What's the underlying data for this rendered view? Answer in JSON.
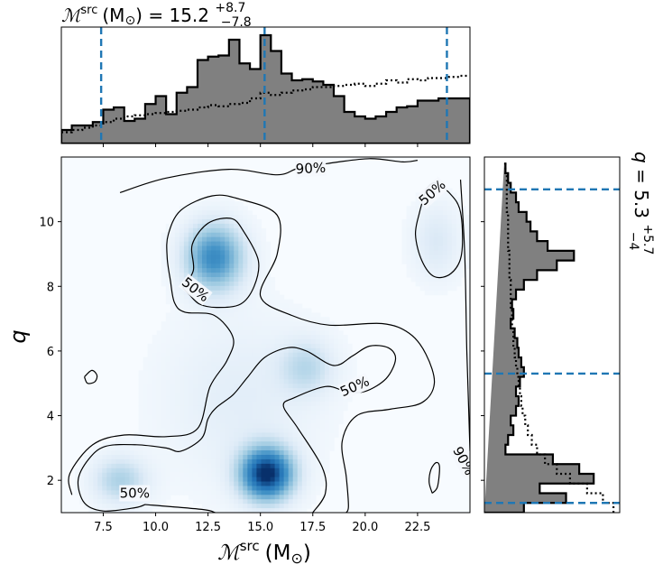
{
  "chart_data": {
    "type": "corner",
    "colors": {
      "hist_fill": "#808080",
      "credible_lines": "#1f77b4",
      "density_light": "#f2f6fc",
      "density_dark": "#08306b",
      "contour": "#000000"
    },
    "mchirp": {
      "label_math": "ℳ",
      "label_sup": "src",
      "label_unit": "(M",
      "label_sun": "⊙",
      "label_close": ")",
      "title_value": "15.2",
      "title_plus": "+8.7",
      "title_minus": "−7.8",
      "range": [
        5.5,
        25.0
      ],
      "ticks": [
        "7.5",
        "10.0",
        "12.5",
        "15.0",
        "17.5",
        "20.0",
        "22.5"
      ],
      "tick_values": [
        7.5,
        10.0,
        12.5,
        15.0,
        17.5,
        20.0,
        22.5
      ],
      "credible_interval": [
        7.4,
        15.2,
        23.9
      ],
      "posterior_hist": {
        "bin_edges": [
          5.5,
          6.0,
          6.5,
          7.0,
          7.5,
          8.0,
          8.5,
          9.0,
          9.5,
          10.0,
          10.5,
          11.0,
          11.5,
          12.0,
          12.5,
          13.0,
          13.5,
          14.0,
          14.5,
          15.0,
          15.5,
          16.0,
          16.5,
          17.0,
          17.5,
          18.0,
          18.5,
          19.0,
          19.5,
          20.0,
          20.5,
          21.0,
          21.5,
          22.0,
          22.5,
          23.0,
          23.5,
          24.0,
          24.5,
          25.0
        ],
        "counts": [
          0.12,
          0.16,
          0.16,
          0.19,
          0.3,
          0.32,
          0.2,
          0.22,
          0.35,
          0.42,
          0.26,
          0.45,
          0.5,
          0.74,
          0.77,
          0.78,
          0.92,
          0.71,
          0.66,
          0.96,
          0.82,
          0.62,
          0.56,
          0.57,
          0.55,
          0.52,
          0.42,
          0.28,
          0.24,
          0.22,
          0.24,
          0.28,
          0.32,
          0.33,
          0.38,
          0.38,
          0.4,
          0.4,
          0.4
        ]
      },
      "prior_hist": {
        "bin_edges": [
          5.5,
          6.0,
          6.5,
          7.0,
          7.5,
          8.0,
          8.5,
          9.0,
          9.5,
          10.0,
          10.5,
          11.0,
          11.5,
          12.0,
          12.5,
          13.0,
          13.5,
          14.0,
          14.5,
          15.0,
          15.5,
          16.0,
          16.5,
          17.0,
          17.5,
          18.0,
          18.5,
          19.0,
          19.5,
          20.0,
          20.5,
          21.0,
          21.5,
          22.0,
          22.5,
          23.0,
          23.5,
          24.0,
          24.5,
          25.0
        ],
        "counts": [
          0.1,
          0.12,
          0.14,
          0.16,
          0.19,
          0.22,
          0.24,
          0.25,
          0.26,
          0.27,
          0.28,
          0.29,
          0.3,
          0.32,
          0.34,
          0.33,
          0.35,
          0.36,
          0.4,
          0.45,
          0.43,
          0.45,
          0.47,
          0.48,
          0.5,
          0.5,
          0.51,
          0.52,
          0.53,
          0.51,
          0.53,
          0.56,
          0.54,
          0.57,
          0.56,
          0.58,
          0.58,
          0.59,
          0.6
        ]
      }
    },
    "q": {
      "label": "q",
      "title_value": "5.3",
      "title_plus": "+5.7",
      "title_minus": "−4",
      "range": [
        1.0,
        12.0
      ],
      "ticks": [
        "2",
        "4",
        "6",
        "8",
        "10"
      ],
      "tick_values": [
        2,
        4,
        6,
        8,
        10
      ],
      "credible_interval": [
        1.3,
        5.3,
        11.0
      ],
      "posterior_hist": {
        "bin_edges": [
          1.0,
          1.3,
          1.6,
          1.9,
          2.2,
          2.5,
          2.8,
          3.1,
          3.4,
          3.7,
          4.0,
          4.3,
          4.6,
          4.9,
          5.2,
          5.5,
          5.8,
          6.1,
          6.4,
          6.7,
          7.0,
          7.3,
          7.6,
          7.9,
          8.2,
          8.5,
          8.8,
          9.1,
          9.4,
          9.7,
          10.0,
          10.3,
          10.6,
          10.9,
          11.2,
          11.5,
          11.8
        ],
        "counts": [
          0.3,
          0.62,
          0.42,
          0.83,
          0.72,
          0.52,
          0.16,
          0.18,
          0.22,
          0.2,
          0.24,
          0.26,
          0.24,
          0.27,
          0.3,
          0.28,
          0.26,
          0.25,
          0.23,
          0.2,
          0.22,
          0.21,
          0.24,
          0.3,
          0.4,
          0.55,
          0.68,
          0.48,
          0.4,
          0.35,
          0.32,
          0.26,
          0.24,
          0.2,
          0.18,
          0.16,
          0.15
        ]
      },
      "prior_hist": {
        "bin_edges": [
          1.0,
          1.3,
          1.6,
          1.9,
          2.2,
          2.5,
          2.8,
          3.1,
          3.4,
          3.7,
          4.0,
          4.3,
          4.6,
          4.9,
          5.2,
          5.5,
          5.8,
          6.1,
          6.4,
          6.7,
          7.0,
          7.3,
          7.6,
          7.9,
          8.2,
          8.5,
          8.8,
          9.1,
          9.4,
          9.7,
          10.0,
          10.3,
          10.6,
          10.9,
          11.2,
          11.5,
          11.8
        ],
        "counts": [
          0.98,
          0.9,
          0.78,
          0.65,
          0.55,
          0.46,
          0.4,
          0.36,
          0.33,
          0.31,
          0.29,
          0.28,
          0.27,
          0.26,
          0.25,
          0.24,
          0.23,
          0.22,
          0.22,
          0.21,
          0.21,
          0.2,
          0.2,
          0.2,
          0.19,
          0.19,
          0.19,
          0.18,
          0.18,
          0.18,
          0.18,
          0.17,
          0.17,
          0.17,
          0.17,
          0.16,
          0.16
        ]
      }
    },
    "joint_density": {
      "blobs": [
        {
          "mchirp": 15.3,
          "q": 2.2,
          "weight": 1.0,
          "sigma_x": 0.85,
          "sigma_y": 0.55
        },
        {
          "mchirp": 12.8,
          "q": 8.9,
          "weight": 0.62,
          "sigma_x": 0.95,
          "sigma_y": 0.7
        },
        {
          "mchirp": 8.3,
          "q": 2.0,
          "weight": 0.28,
          "sigma_x": 0.9,
          "sigma_y": 0.5
        },
        {
          "mchirp": 17.2,
          "q": 5.5,
          "weight": 0.22,
          "sigma_x": 0.9,
          "sigma_y": 0.6
        },
        {
          "mchirp": 23.4,
          "q": 9.4,
          "weight": 0.14,
          "sigma_x": 0.8,
          "sigma_y": 0.8
        },
        {
          "mchirp": 14.0,
          "q": 4.5,
          "weight": 0.1,
          "sigma_x": 2.5,
          "sigma_y": 1.8
        }
      ],
      "contour_labels": [
        {
          "text": "90%",
          "mchirp": 17.4,
          "q": 11.65,
          "rotation": -3
        },
        {
          "text": "50%",
          "mchirp": 11.9,
          "q": 7.9,
          "rotation": 38
        },
        {
          "text": "50%",
          "mchirp": 19.5,
          "q": 4.9,
          "rotation": -24
        },
        {
          "text": "50%",
          "mchirp": 23.2,
          "q": 10.9,
          "rotation": -42
        },
        {
          "text": "50%",
          "mchirp": 9.0,
          "q": 1.6,
          "rotation": 0
        },
        {
          "text": "90%",
          "mchirp": 24.7,
          "q": 2.6,
          "rotation": 62
        }
      ],
      "contours": [
        {
          "level": "90%",
          "points": [
            [
              8.3,
              10.9
            ],
            [
              10.5,
              11.35
            ],
            [
              13.5,
              11.62
            ],
            [
              15.8,
              11.45
            ],
            [
              16.8,
              11.65
            ],
            [
              18.2,
              11.8
            ],
            [
              20.2,
              11.95
            ],
            [
              21.8,
              11.85
            ],
            [
              22.5,
              11.9
            ]
          ]
        },
        {
          "level": "90%",
          "points": [
            [
              24.55,
              11.3
            ],
            [
              24.75,
              9.0
            ],
            [
              24.85,
              6.0
            ],
            [
              24.95,
              4.0
            ],
            [
              25.0,
              2.9
            ]
          ]
        },
        {
          "level": "50%",
          "points": [
            [
              11.3,
              7.95
            ],
            [
              11.8,
              8.5
            ],
            [
              11.75,
              9.3
            ],
            [
              12.5,
              9.95
            ],
            [
              13.6,
              10.1
            ],
            [
              14.2,
              9.7
            ],
            [
              14.9,
              8.8
            ],
            [
              14.7,
              8.0
            ],
            [
              14.05,
              7.45
            ],
            [
              12.9,
              7.35
            ],
            [
              12.1,
              7.45
            ],
            [
              11.6,
              7.75
            ],
            [
              11.3,
              7.95
            ]
          ]
        },
        {
          "level": "50%",
          "points": [
            [
              22.9,
              11.0
            ],
            [
              23.3,
              11.2
            ],
            [
              24.0,
              10.9
            ],
            [
              24.55,
              10.3
            ],
            [
              24.6,
              9.0
            ],
            [
              24.1,
              8.4
            ],
            [
              23.3,
              8.3
            ],
            [
              22.7,
              8.8
            ],
            [
              22.4,
              9.6
            ],
            [
              22.6,
              10.3
            ],
            [
              22.9,
              11.0
            ]
          ]
        },
        {
          "level": "50%",
          "points": [
            [
              6.6,
              5.2
            ],
            [
              6.95,
              5.4
            ],
            [
              7.2,
              5.25
            ],
            [
              7.1,
              5.05
            ],
            [
              6.75,
              5.0
            ],
            [
              6.6,
              5.2
            ]
          ]
        },
        {
          "level": "50%",
          "points": [
            [
              23.2,
              1.6
            ],
            [
              23.45,
              1.8
            ],
            [
              23.55,
              2.4
            ],
            [
              23.4,
              2.55
            ],
            [
              23.15,
              2.35
            ],
            [
              23.05,
              1.95
            ],
            [
              23.2,
              1.6
            ]
          ]
        },
        {
          "level": "50%",
          "points": [
            [
              9.5,
              1.25
            ],
            [
              12.2,
              1.1
            ],
            [
              12.85,
              1.0
            ]
          ]
        },
        {
          "level": "50%",
          "points": [
            [
              17.5,
              1.0
            ],
            [
              18.1,
              1.6
            ],
            [
              17.95,
              2.4
            ],
            [
              16.8,
              3.6
            ],
            [
              16.1,
              4.3
            ],
            [
              16.6,
              4.55
            ],
            [
              18.1,
              4.9
            ],
            [
              19.1,
              4.75
            ],
            [
              20.0,
              4.75
            ],
            [
              21.0,
              5.15
            ],
            [
              21.45,
              5.75
            ],
            [
              21.1,
              6.1
            ],
            [
              20.2,
              6.15
            ],
            [
              19.4,
              5.85
            ],
            [
              18.5,
              5.55
            ],
            [
              17.2,
              6.0
            ],
            [
              16.3,
              6.1
            ],
            [
              15.2,
              5.8
            ],
            [
              14.4,
              5.2
            ],
            [
              13.7,
              4.65
            ],
            [
              12.9,
              4.25
            ],
            [
              12.5,
              3.9
            ],
            [
              12.2,
              3.3
            ],
            [
              11.2,
              2.9
            ],
            [
              10.5,
              3.0
            ],
            [
              9.1,
              3.1
            ],
            [
              7.6,
              3.05
            ],
            [
              6.8,
              2.65
            ],
            [
              6.3,
              2.0
            ],
            [
              6.6,
              1.3
            ],
            [
              7.5,
              1.05
            ],
            [
              9.0,
              1.15
            ],
            [
              9.5,
              1.25
            ]
          ]
        },
        {
          "level": "90%",
          "points": [
            [
              6.0,
              1.55
            ],
            [
              5.9,
              2.2
            ],
            [
              7.0,
              3.1
            ],
            [
              8.5,
              3.4
            ],
            [
              10.5,
              3.35
            ],
            [
              12.0,
              3.6
            ],
            [
              12.6,
              4.9
            ],
            [
              13.4,
              5.7
            ],
            [
              13.7,
              6.4
            ],
            [
              12.8,
              7.1
            ],
            [
              11.4,
              7.2
            ],
            [
              10.9,
              7.5
            ],
            [
              10.7,
              8.2
            ],
            [
              10.55,
              8.9
            ],
            [
              10.6,
              9.6
            ],
            [
              11.2,
              10.35
            ],
            [
              12.7,
              10.8
            ],
            [
              14.0,
              10.7
            ],
            [
              15.8,
              10.2
            ],
            [
              15.8,
              9.0
            ],
            [
              15.0,
              7.7
            ],
            [
              16.5,
              7.1
            ],
            [
              18.3,
              6.8
            ],
            [
              20.8,
              6.85
            ],
            [
              22.1,
              6.55
            ],
            [
              22.9,
              5.9
            ],
            [
              23.3,
              5.0
            ],
            [
              22.7,
              4.4
            ],
            [
              21.2,
              4.2
            ],
            [
              19.6,
              4.0
            ],
            [
              18.9,
              3.2
            ],
            [
              19.1,
              2.1
            ],
            [
              19.2,
              1.2
            ],
            [
              19.1,
              1.0
            ]
          ]
        }
      ]
    }
  }
}
